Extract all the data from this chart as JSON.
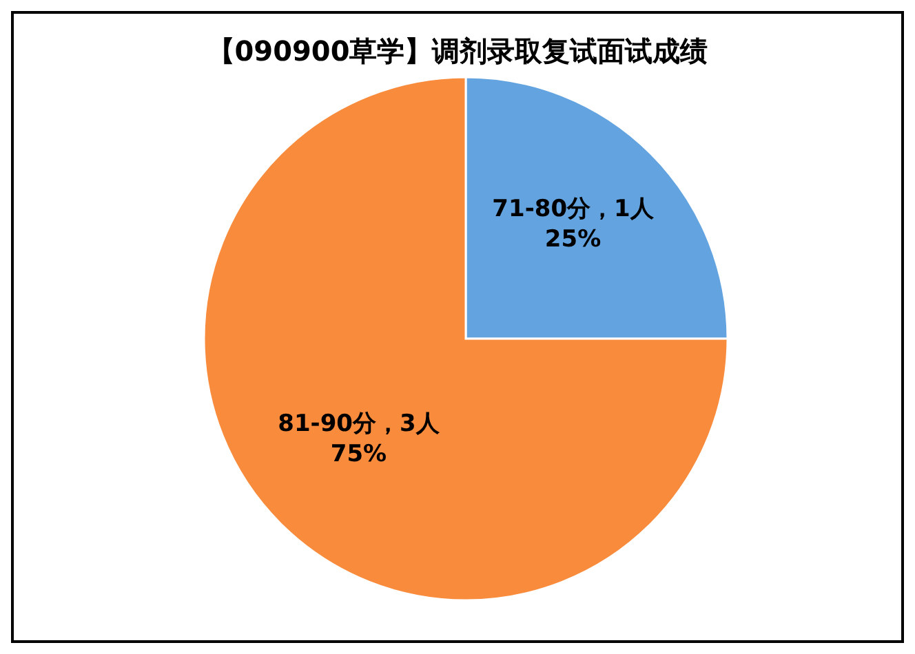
{
  "chart_data": {
    "type": "pie",
    "title": "【090900草学】调剂录取复试面试成绩",
    "categories": [
      "71-80分",
      "81-90分"
    ],
    "values": [
      1,
      3
    ],
    "colors": [
      "#62a3e0",
      "#f98b3c"
    ],
    "value_labels": [
      "，1人\n25%",
      "，3人\n75%"
    ],
    "legend": false
  }
}
